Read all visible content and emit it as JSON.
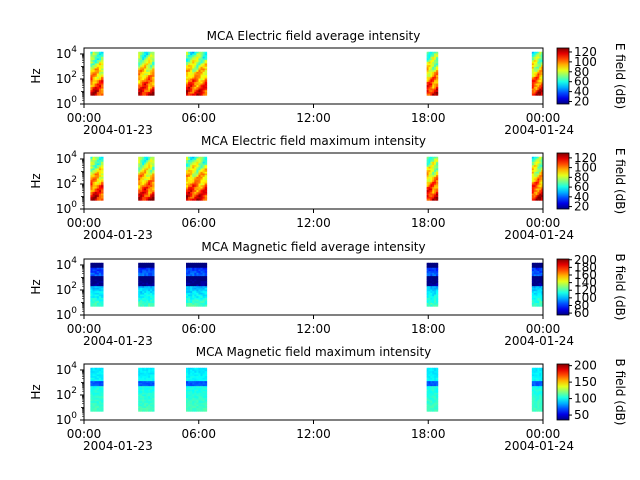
{
  "chart_data": [
    {
      "type": "heatmap",
      "title": "MCA  Electric field average intensity",
      "ylabel": "Hz",
      "y_scale": "log",
      "ylim": [
        1,
        30000
      ],
      "y_ticks": [
        {
          "value": 1,
          "base": "10",
          "exp": "0"
        },
        {
          "value": 100,
          "base": "10",
          "exp": "2"
        },
        {
          "value": 10000,
          "base": "10",
          "exp": "4"
        }
      ],
      "xlim": [
        "2004-01-23T00:00",
        "2004-01-24T00:00"
      ],
      "x_ticks": [
        {
          "time": "2004-01-23T00:00",
          "label": "00:00",
          "sublabel": "2004-01-23"
        },
        {
          "time": "2004-01-23T06:00",
          "label": "06:00",
          "sublabel": ""
        },
        {
          "time": "2004-01-23T12:00",
          "label": "12:00",
          "sublabel": ""
        },
        {
          "time": "2004-01-23T18:00",
          "label": "18:00",
          "sublabel": ""
        },
        {
          "time": "2004-01-24T00:00",
          "label": "00:00",
          "sublabel": "2004-01-24"
        }
      ],
      "data_intervals": [
        [
          "00:20",
          "01:00"
        ],
        [
          "02:50",
          "03:40"
        ],
        [
          "05:20",
          "06:25"
        ],
        [
          "17:55",
          "18:30"
        ],
        [
          "23:25",
          "24:00"
        ]
      ],
      "colorbar": {
        "label": "E field (dB)",
        "min": 15,
        "max": 128,
        "ticks": [
          20,
          40,
          60,
          80,
          100,
          120
        ],
        "colormap": "jet"
      },
      "typical_level_db": {
        "low_freq": 115,
        "high_freq": 65
      }
    },
    {
      "type": "heatmap",
      "title": "MCA  Electric field maximum intensity",
      "ylabel": "Hz",
      "y_scale": "log",
      "ylim": [
        1,
        30000
      ],
      "y_ticks": [
        {
          "value": 1,
          "base": "10",
          "exp": "0"
        },
        {
          "value": 100,
          "base": "10",
          "exp": "2"
        },
        {
          "value": 10000,
          "base": "10",
          "exp": "4"
        }
      ],
      "xlim": [
        "2004-01-23T00:00",
        "2004-01-24T00:00"
      ],
      "x_ticks": [
        {
          "time": "2004-01-23T00:00",
          "label": "00:00",
          "sublabel": "2004-01-23"
        },
        {
          "time": "2004-01-23T06:00",
          "label": "06:00",
          "sublabel": ""
        },
        {
          "time": "2004-01-23T12:00",
          "label": "12:00",
          "sublabel": ""
        },
        {
          "time": "2004-01-23T18:00",
          "label": "18:00",
          "sublabel": ""
        },
        {
          "time": "2004-01-24T00:00",
          "label": "00:00",
          "sublabel": "2004-01-24"
        }
      ],
      "data_intervals": [
        [
          "00:20",
          "01:00"
        ],
        [
          "02:50",
          "03:40"
        ],
        [
          "05:20",
          "06:25"
        ],
        [
          "17:55",
          "18:30"
        ],
        [
          "23:25",
          "24:00"
        ]
      ],
      "colorbar": {
        "label": "E field (dB)",
        "min": 15,
        "max": 130,
        "ticks": [
          20,
          40,
          60,
          80,
          100,
          120
        ],
        "colormap": "jet"
      },
      "typical_level_db": {
        "low_freq": 118,
        "high_freq": 68
      }
    },
    {
      "type": "heatmap",
      "title": "MCA  Magnetic field average intensity",
      "ylabel": "Hz",
      "y_scale": "log",
      "ylim": [
        1,
        30000
      ],
      "y_ticks": [
        {
          "value": 1,
          "base": "10",
          "exp": "0"
        },
        {
          "value": 100,
          "base": "10",
          "exp": "2"
        },
        {
          "value": 10000,
          "base": "10",
          "exp": "4"
        }
      ],
      "xlim": [
        "2004-01-23T00:00",
        "2004-01-24T00:00"
      ],
      "x_ticks": [
        {
          "time": "2004-01-23T00:00",
          "label": "00:00",
          "sublabel": "2004-01-23"
        },
        {
          "time": "2004-01-23T06:00",
          "label": "06:00",
          "sublabel": ""
        },
        {
          "time": "2004-01-23T12:00",
          "label": "12:00",
          "sublabel": ""
        },
        {
          "time": "2004-01-23T18:00",
          "label": "18:00",
          "sublabel": ""
        },
        {
          "time": "2004-01-24T00:00",
          "label": "00:00",
          "sublabel": "2004-01-24"
        }
      ],
      "data_intervals": [
        [
          "00:20",
          "01:00"
        ],
        [
          "02:50",
          "03:40"
        ],
        [
          "05:20",
          "06:25"
        ],
        [
          "17:55",
          "18:30"
        ],
        [
          "23:25",
          "24:00"
        ]
      ],
      "colorbar": {
        "label": "B field (dB)",
        "min": 55,
        "max": 202,
        "ticks": [
          60,
          80,
          100,
          120,
          140,
          160,
          180,
          200
        ],
        "colormap": "jet"
      },
      "typical_level_db": {
        "low_freq": 120,
        "high_freq": 75
      }
    },
    {
      "type": "heatmap",
      "title": "MCA  Magnetic field maximum intensity",
      "ylabel": "Hz",
      "y_scale": "log",
      "ylim": [
        1,
        30000
      ],
      "y_ticks": [
        {
          "value": 1,
          "base": "10",
          "exp": "0"
        },
        {
          "value": 100,
          "base": "10",
          "exp": "2"
        },
        {
          "value": 10000,
          "base": "10",
          "exp": "4"
        }
      ],
      "xlim": [
        "2004-01-23T00:00",
        "2004-01-24T00:00"
      ],
      "x_ticks": [
        {
          "time": "2004-01-23T00:00",
          "label": "00:00",
          "sublabel": "2004-01-23"
        },
        {
          "time": "2004-01-23T06:00",
          "label": "06:00",
          "sublabel": ""
        },
        {
          "time": "2004-01-23T12:00",
          "label": "12:00",
          "sublabel": ""
        },
        {
          "time": "2004-01-23T18:00",
          "label": "18:00",
          "sublabel": ""
        },
        {
          "time": "2004-01-24T00:00",
          "label": "00:00",
          "sublabel": "2004-01-24"
        }
      ],
      "data_intervals": [
        [
          "00:20",
          "01:00"
        ],
        [
          "02:50",
          "03:40"
        ],
        [
          "05:20",
          "06:25"
        ],
        [
          "17:55",
          "18:30"
        ],
        [
          "23:25",
          "24:00"
        ]
      ],
      "colorbar": {
        "label": "B field (dB)",
        "min": 35,
        "max": 205,
        "ticks": [
          50,
          100,
          150,
          200
        ],
        "colormap": "jet"
      },
      "typical_level_db": {
        "low_freq": 110,
        "high_freq": 95
      }
    }
  ]
}
